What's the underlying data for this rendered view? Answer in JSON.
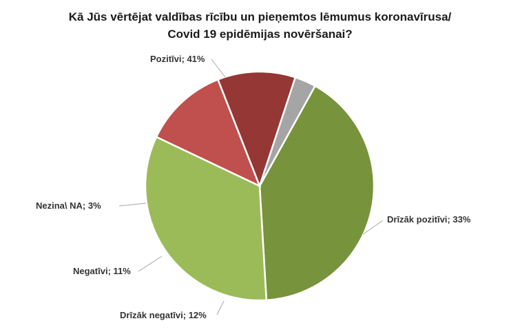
{
  "chart_data": {
    "type": "pie",
    "title_lines": [
      "Kā Jūs vērtējat valdības rīcību un pieņemtos lēmumus koronavīrusa/",
      "Covid 19 epidēmijas novēršanai?"
    ],
    "slices": [
      {
        "label": "Pozitīvi; 41%",
        "value": 41,
        "color": "#77933c"
      },
      {
        "label": "Drīzāk pozitīvi; 33%",
        "value": 33,
        "color": "#9bbb59"
      },
      {
        "label": "Drīzāk negatīvi; 12%",
        "value": 12,
        "color": "#c0504d"
      },
      {
        "label": "Negatīvi; 11%",
        "value": 11,
        "color": "#953735"
      },
      {
        "label": "Nezina\\ NA; 3%",
        "value": 3,
        "color": "#a5a5a5"
      }
    ]
  }
}
